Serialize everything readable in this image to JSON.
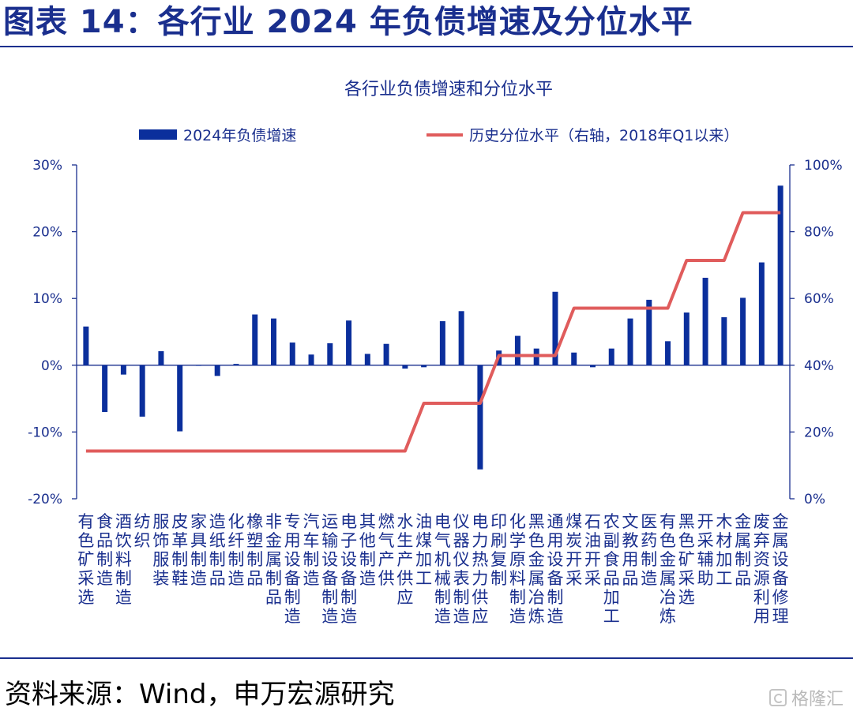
{
  "header": {
    "title": "图表 14：各行业 2024 年负债增速及分位水平"
  },
  "footer": {
    "source": "资料来源：Wind，申万宏源研究",
    "watermark": "格隆汇"
  },
  "colors": {
    "brand_blue": "#1a2f8e",
    "bar": "#0b2f9c",
    "line": "#e05c5c"
  },
  "chart_data": {
    "type": "bar",
    "title": "各行业负债增速和分位水平",
    "legend_position": "top",
    "categories": [
      "有色矿采选",
      "食品制造",
      "酒饮料制造",
      "纺织",
      "服饰服装",
      "皮革制鞋",
      "家具制造",
      "造纸制品",
      "化纤制造",
      "橡塑制品",
      "非金属制品",
      "专用设备制造",
      "汽车制造",
      "运输设备制造",
      "电子设备制造",
      "其他制造",
      "燃气产供",
      "水生产供应",
      "油煤加工",
      "电气机械制造",
      "仪器仪表制造",
      "电力热力供应",
      "印刷复制",
      "化学原料制造",
      "黑色金属冶炼",
      "通用设备制造",
      "煤炭开采",
      "石油开采",
      "农副食品加工",
      "文教用品",
      "医药制造",
      "有色金属冶炼",
      "黑色矿采选",
      "开采辅助",
      "木材加工",
      "金属制品",
      "废弃资源利用",
      "金属设备修理"
    ],
    "y_left": {
      "ticks": [
        "30%",
        "20%",
        "10%",
        "0%",
        "-10%",
        "-20%"
      ],
      "ylim": [
        -20,
        30
      ],
      "unit": "%"
    },
    "y_right": {
      "ticks": [
        "100%",
        "80%",
        "60%",
        "40%",
        "20%",
        "0%"
      ],
      "ylim": [
        0,
        100
      ],
      "unit": "%"
    },
    "grid": false,
    "series": [
      {
        "name": "2024年负债增速",
        "type": "bar",
        "axis": "left",
        "values": [
          5.8,
          -7.0,
          -1.4,
          -7.7,
          2.1,
          -9.9,
          0.0,
          -1.6,
          0.2,
          7.6,
          7.0,
          3.4,
          1.6,
          3.3,
          6.7,
          1.7,
          3.2,
          -0.5,
          -0.3,
          6.6,
          8.1,
          -15.6,
          2.2,
          4.4,
          2.5,
          11.0,
          1.9,
          -0.3,
          2.5,
          7.0,
          9.8,
          3.6,
          7.9,
          13.1,
          7.2,
          10.1,
          15.4,
          26.9
        ]
      },
      {
        "name": "历史分位水平（右轴，2018年Q1以来）",
        "type": "line",
        "axis": "right",
        "values": [
          14.3,
          14.3,
          14.3,
          14.3,
          14.3,
          14.3,
          14.3,
          14.3,
          14.3,
          14.3,
          14.3,
          14.3,
          14.3,
          14.3,
          14.3,
          14.3,
          14.3,
          14.3,
          28.6,
          28.6,
          28.6,
          28.6,
          42.9,
          42.9,
          42.9,
          42.9,
          57.1,
          57.1,
          57.1,
          57.1,
          57.1,
          57.1,
          71.4,
          71.4,
          71.4,
          85.7,
          85.7,
          85.7
        ]
      }
    ]
  }
}
